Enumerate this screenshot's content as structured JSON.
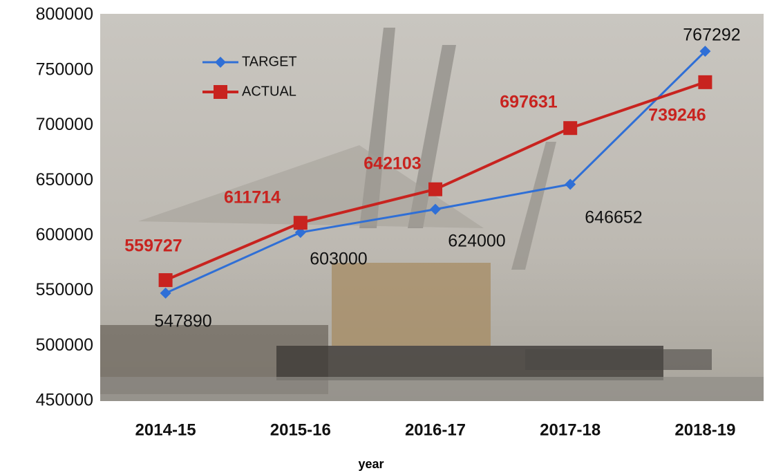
{
  "chart_data": {
    "type": "line",
    "x_label": "year",
    "categories": [
      "2014-15",
      "2015-16",
      "2016-17",
      "2017-18",
      "2018-19"
    ],
    "series": [
      {
        "name": "TARGET",
        "color": "#2f6fd6",
        "marker": "diamond",
        "values": [
          547890,
          603000,
          624000,
          646652,
          767292
        ]
      },
      {
        "name": "ACTUAL",
        "color": "#c8231f",
        "marker": "square",
        "values": [
          559727,
          611714,
          642103,
          697631,
          739246
        ]
      }
    ],
    "ylim": [
      450000,
      800000
    ],
    "yticks": [
      450000,
      500000,
      550000,
      600000,
      650000,
      700000,
      750000,
      800000
    ],
    "grid": false
  }
}
